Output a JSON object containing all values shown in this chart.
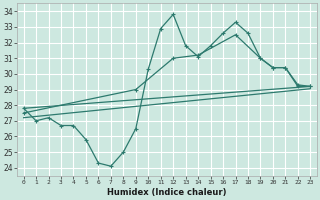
{
  "bg_color": "#cde8e0",
  "grid_color": "#ffffff",
  "line_color": "#2d7a6e",
  "xlabel": "Humidex (Indice chaleur)",
  "ylim": [
    23.5,
    34.5
  ],
  "xlim": [
    -0.5,
    23.5
  ],
  "yticks": [
    24,
    25,
    26,
    27,
    28,
    29,
    30,
    31,
    32,
    33,
    34
  ],
  "xticks": [
    0,
    1,
    2,
    3,
    4,
    5,
    6,
    7,
    8,
    9,
    10,
    11,
    12,
    13,
    14,
    15,
    16,
    17,
    18,
    19,
    20,
    21,
    22,
    23
  ],
  "series1_x": [
    0,
    1,
    2,
    3,
    4,
    5,
    6,
    7,
    8,
    9,
    10,
    11,
    12,
    13,
    14,
    15,
    16,
    17,
    18,
    19,
    20,
    21,
    22,
    23
  ],
  "series1_y": [
    27.8,
    27.0,
    27.2,
    26.7,
    26.7,
    25.8,
    24.3,
    24.1,
    25.0,
    26.5,
    30.3,
    32.9,
    33.8,
    31.8,
    31.1,
    31.8,
    32.6,
    33.3,
    32.6,
    31.0,
    30.4,
    30.4,
    29.2,
    29.2
  ],
  "series2_x": [
    0,
    23
  ],
  "series2_y": [
    27.8,
    29.2
  ],
  "series3_x": [
    0,
    23
  ],
  "series3_y": [
    27.2,
    29.05
  ],
  "series4_x": [
    0,
    9,
    12,
    14,
    17,
    19,
    20,
    21,
    22,
    23
  ],
  "series4_y": [
    27.5,
    29.0,
    31.0,
    31.2,
    32.5,
    31.0,
    30.4,
    30.4,
    29.3,
    29.2
  ]
}
